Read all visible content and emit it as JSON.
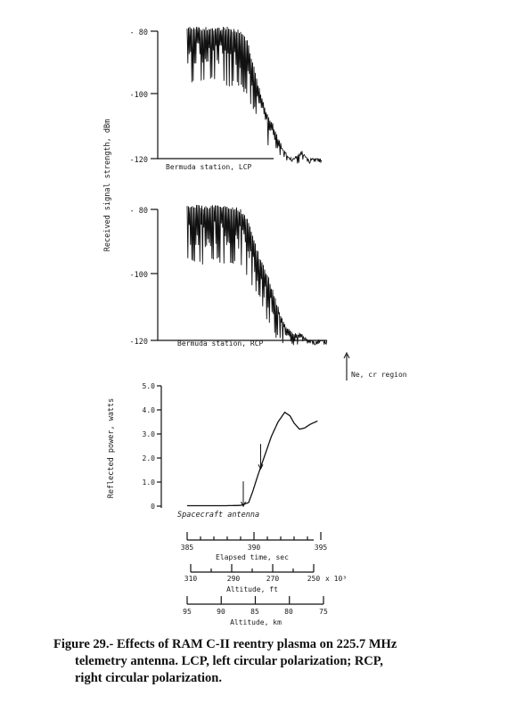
{
  "caption": {
    "line1": "Figure 29.- Effects of RAM C-II reentry plasma on 225.7 MHz",
    "line2": "telemetry antenna.  LCP, left circular polarization; RCP,",
    "line3": "right circular polarization."
  },
  "chart_data": [
    {
      "type": "line",
      "title": "Bermuda station, LCP",
      "ylabel": "Received signal strength, dBm",
      "ylim": [
        -120,
        -80
      ],
      "yticks": [
        "- 80",
        "-100",
        "-120"
      ],
      "x_unit": "Elapsed time, sec",
      "xlim": [
        385,
        395
      ],
      "series": [
        {
          "x": [
            385.0,
            386.0,
            387.0,
            388.0,
            389.0,
            389.5,
            390.0,
            390.5,
            391.0,
            391.5,
            392.0,
            392.5,
            393.0,
            393.5,
            394.0
          ],
          "y_upper": [
            -80,
            -80,
            -80,
            -80,
            -81,
            -84,
            -92,
            -100,
            -106,
            -110,
            -115,
            -119,
            -120,
            -117,
            -120
          ],
          "y_lower": [
            -95,
            -96,
            -95,
            -96,
            -97,
            -100,
            -104,
            -110,
            -114,
            -116,
            -118,
            -120,
            -120,
            -120,
            -120
          ]
        }
      ]
    },
    {
      "type": "line",
      "title": "Bermuda station, RCP",
      "ylabel": "Received signal strength, dBm",
      "ylim": [
        -120,
        -80
      ],
      "yticks": [
        "- 80",
        "-100",
        "-120"
      ],
      "x_unit": "Elapsed time, sec",
      "xlim": [
        385,
        395
      ],
      "series": [
        {
          "x": [
            385.0,
            386.0,
            387.0,
            388.0,
            389.0,
            389.5,
            390.0,
            390.5,
            391.0,
            391.5,
            392.0,
            392.5,
            393.0,
            393.5,
            394.0
          ],
          "y_upper": [
            -80,
            -80,
            -80,
            -80,
            -81,
            -84,
            -90,
            -96,
            -100,
            -106,
            -112,
            -116,
            -118,
            -117,
            -120
          ],
          "y_lower": [
            -95,
            -96,
            -95,
            -96,
            -97,
            -100,
            -103,
            -108,
            -113,
            -117,
            -119,
            -120,
            -120,
            -120,
            -120
          ]
        }
      ]
    },
    {
      "type": "line",
      "title": "Spacecraft antenna",
      "ylabel": "Reflected power, watts",
      "ylim": [
        0,
        5
      ],
      "yticks": [
        "0",
        "1.0",
        "2.0",
        "3.0",
        "4.0",
        "5.0"
      ],
      "x_unit": "Elapsed time, sec",
      "xlim": [
        385,
        395
      ],
      "series": [
        {
          "x": [
            385.0,
            386.0,
            387.0,
            388.0,
            389.0,
            389.6,
            389.9,
            390.3,
            390.8,
            391.3,
            391.8,
            392.3,
            392.7,
            393.0,
            393.4,
            393.8,
            394.2,
            394.8
          ],
          "y": [
            0.02,
            0.02,
            0.02,
            0.02,
            0.03,
            0.15,
            0.6,
            1.3,
            2.1,
            2.9,
            3.5,
            3.9,
            3.75,
            3.45,
            3.2,
            3.25,
            3.4,
            3.55
          ]
        }
      ],
      "markers": [
        {
          "x": 389.2,
          "label": ""
        },
        {
          "x": 390.5,
          "label": ""
        }
      ]
    }
  ],
  "legend_region": {
    "symbol": "↑",
    "label": "Ne, cr region"
  },
  "scales": {
    "time": {
      "ticks": [
        "385",
        "390",
        "395"
      ],
      "label": "Elapsed time, sec"
    },
    "altitude_ft": {
      "ticks": [
        "310",
        "290",
        "270",
        "250"
      ],
      "suffix": "x 10³",
      "label": "Altitude, ft"
    },
    "altitude_km": {
      "ticks": [
        "95",
        "90",
        "85",
        "80",
        "75"
      ],
      "label": "Altitude, km"
    }
  }
}
